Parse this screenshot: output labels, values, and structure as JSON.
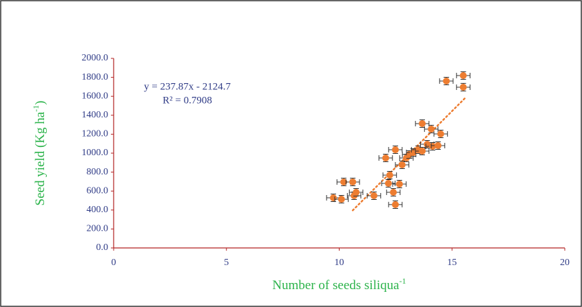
{
  "chart_data": {
    "type": "scatter",
    "ylabel": {
      "text": "Seed yield (Kg ha",
      "sup": "-1",
      "end": ")"
    },
    "xlabel": {
      "text": "Number of seeds siliqua",
      "sup": "-1"
    },
    "annotations": [
      "y = 237.87x - 2124.7",
      "R² = 0.7908"
    ],
    "trendline": {
      "slope": 237.87,
      "intercept": -2124.7,
      "x_range": [
        10.6,
        15.6
      ],
      "color": "#ed7d31"
    },
    "series": [
      {
        "color": "#ed7d31",
        "x": [
          9.74,
          10.1,
          10.2,
          10.6,
          10.66,
          10.75,
          11.54,
          12.06,
          12.18,
          12.24,
          12.4,
          12.49,
          12.49,
          12.67,
          12.79,
          12.98,
          13.1,
          13.28,
          13.5,
          13.68,
          13.68,
          13.9,
          14.08,
          14.14,
          14.38,
          14.5,
          14.75,
          15.5,
          15.5
        ],
        "values": [
          529,
          514,
          696,
          696,
          551,
          587,
          551,
          949,
          681,
          768,
          587,
          457,
          1036,
          674,
          877,
          949,
          986,
          1007,
          1036,
          1022,
          1312,
          1094,
          1254,
          1072,
          1080,
          1203,
          1761,
          1819,
          1696
        ],
        "error_x": 0.3,
        "error_y": 40
      }
    ],
    "xlim": [
      0,
      20
    ],
    "xticks": [
      0,
      5,
      10,
      15,
      20
    ],
    "ylim": [
      0,
      2000
    ],
    "yticks": [
      {
        "value": 0,
        "label": "0.0"
      },
      {
        "value": 200,
        "label": "200.0"
      },
      {
        "value": 400,
        "label": "400.0"
      },
      {
        "value": 600,
        "label": "600.0"
      },
      {
        "value": 800,
        "label": "800.0"
      },
      {
        "value": 1000,
        "label": "1000.0"
      },
      {
        "value": 1200,
        "label": "1200.0"
      },
      {
        "value": 1400,
        "label": "1400.0"
      },
      {
        "value": 1600,
        "label": "1600.0"
      },
      {
        "value": 1800,
        "label": "1800.0"
      },
      {
        "value": 2000,
        "label": "2000.0"
      }
    ],
    "axis_color": "#b22222",
    "tick_color": "#2f3b86",
    "label_color": "#2bb34a"
  }
}
